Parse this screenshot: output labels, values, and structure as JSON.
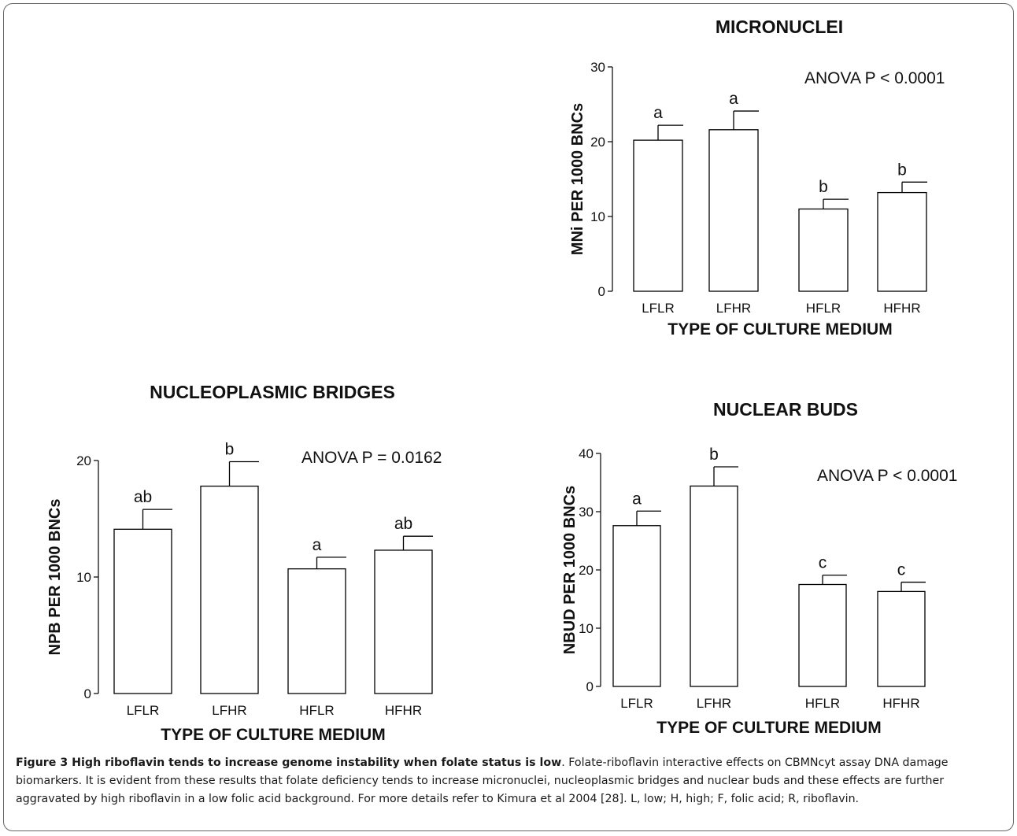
{
  "chart_data": [
    {
      "type": "bar",
      "title": "MICRONUCLEI",
      "annotation": "ANOVA P < 0.0001",
      "xlabel": "TYPE OF CULTURE MEDIUM",
      "ylabel": "MNi PER 1000 BNCs",
      "ylim": [
        0,
        30
      ],
      "yticks": [
        0,
        10,
        20,
        30
      ],
      "categories": [
        "LFLR",
        "LFHR",
        "HFLR",
        "HFHR"
      ],
      "values": [
        20.2,
        21.6,
        11.0,
        13.2
      ],
      "errors": [
        2.0,
        2.5,
        1.3,
        1.4
      ],
      "labels": [
        "a",
        "a",
        "b",
        "b"
      ]
    },
    {
      "type": "bar",
      "title": "NUCLEOPLASMIC BRIDGES",
      "annotation": "ANOVA P = 0.0162",
      "xlabel": "TYPE OF CULTURE MEDIUM",
      "ylabel": "NPB PER 1000 BNCs",
      "ylim": [
        0,
        20
      ],
      "yticks": [
        0,
        10,
        20
      ],
      "categories": [
        "LFLR",
        "LFHR",
        "HFLR",
        "HFHR"
      ],
      "values": [
        14.1,
        17.8,
        10.7,
        12.3
      ],
      "errors": [
        1.7,
        2.1,
        1.0,
        1.2
      ],
      "labels": [
        "ab",
        "b",
        "a",
        "ab"
      ]
    },
    {
      "type": "bar",
      "title": "NUCLEAR BUDS",
      "annotation": "ANOVA P < 0.0001",
      "xlabel": "TYPE OF CULTURE MEDIUM",
      "ylabel": "NBUD PER 1000 BNCs",
      "ylim": [
        0,
        40
      ],
      "yticks": [
        0,
        10,
        20,
        30,
        40
      ],
      "categories": [
        "LFLR",
        "LFHR",
        "HFLR",
        "HFHR"
      ],
      "values": [
        27.6,
        34.4,
        17.5,
        16.3
      ],
      "errors": [
        2.5,
        3.3,
        1.6,
        1.6
      ],
      "labels": [
        "a",
        "b",
        "c",
        "c"
      ]
    }
  ],
  "caption": {
    "title": "Figure 3 High riboflavin tends to increase genome instability when folate status is low",
    "text": ". Folate-riboflavin interactive effects on CBMNcyt assay DNA damage biomarkers. It is evident from these results that folate deficiency tends to increase micronuclei, nucleoplasmic bridges and nuclear buds and these effects are further aggravated by high riboflavin in a low folic acid background. For more details refer to Kimura et al 2004 [28]. L, low; H, high; F, folic acid; R, riboflavin."
  }
}
